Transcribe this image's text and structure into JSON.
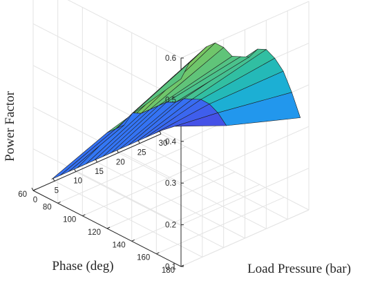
{
  "chart_data": {
    "type": "surface",
    "title": "",
    "xlabel": "Load Pressure (bar)",
    "ylabel": "Phase (deg)",
    "zlabel": "Power Factor",
    "xlim": [
      0,
      30
    ],
    "ylim": [
      60,
      180
    ],
    "zlim": [
      0.1,
      0.6
    ],
    "xticks": [
      "0",
      "5",
      "10",
      "15",
      "20",
      "25",
      "30"
    ],
    "yticks": [
      "60",
      "80",
      "100",
      "120",
      "140",
      "160",
      "180"
    ],
    "zticks": [
      "0.1",
      "0.2",
      "0.3",
      "0.4",
      "0.5",
      "0.6"
    ],
    "grid": true,
    "colormap": "parula",
    "phase_values": [
      75,
      120,
      180
    ],
    "pressure_values": [
      0,
      2,
      4,
      6,
      8,
      10,
      12,
      14,
      16,
      18,
      20,
      22,
      24,
      26,
      28
    ],
    "power_factor": [
      [
        0.15,
        0.15,
        0.15,
        0.15,
        0.15,
        0.15,
        0.15,
        0.15,
        0.15,
        0.15,
        0.15,
        0.15,
        0.15,
        0.15,
        0.15
      ],
      [
        0.33,
        0.33,
        0.33,
        0.35,
        0.34,
        0.34,
        0.34,
        0.34,
        0.33,
        0.33,
        0.32,
        0.31,
        0.29,
        0.26,
        0.22
      ],
      [
        0.55,
        0.58,
        0.59,
        0.6,
        0.6,
        0.58,
        0.55,
        0.54,
        0.53,
        0.54,
        0.53,
        0.5,
        0.46,
        0.4,
        0.33
      ]
    ]
  }
}
